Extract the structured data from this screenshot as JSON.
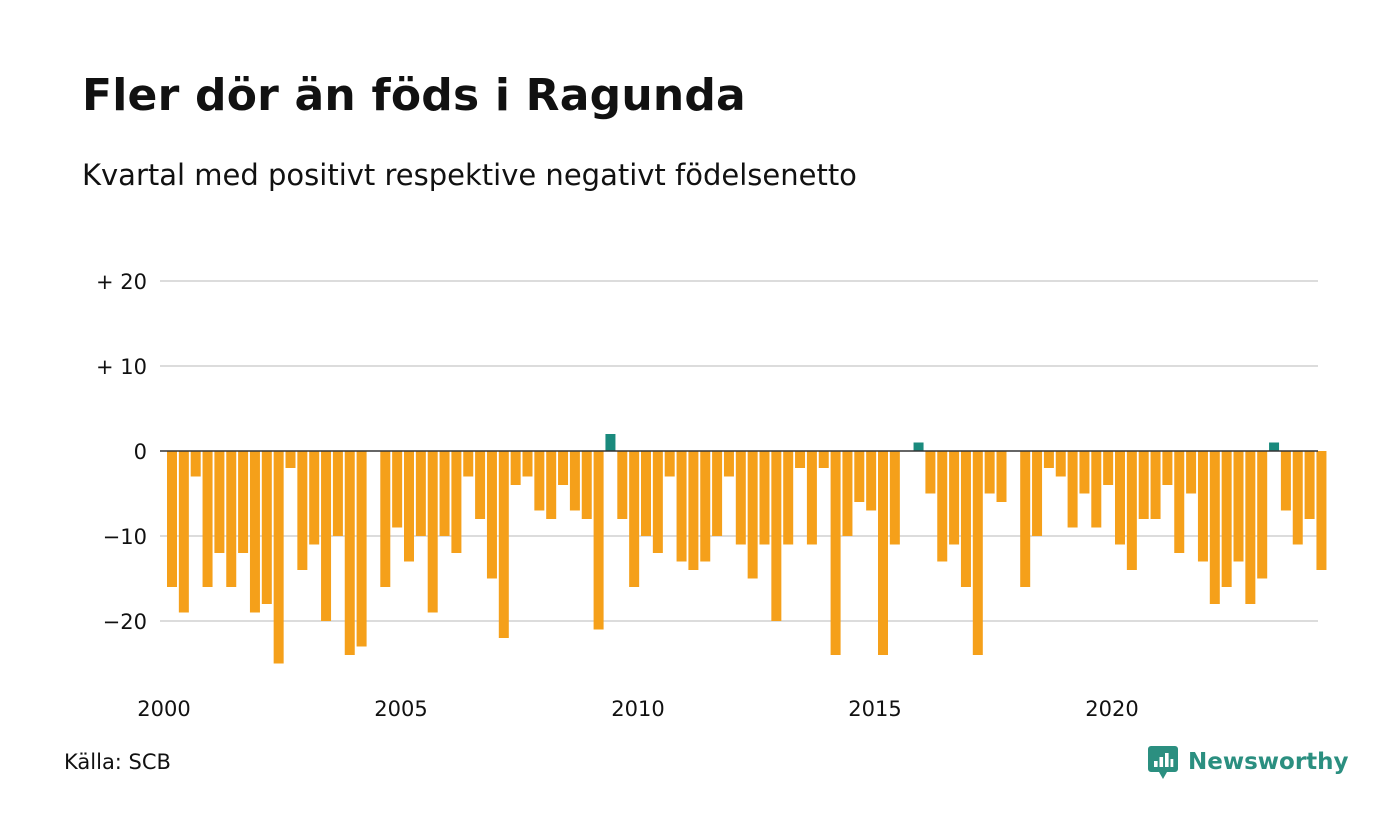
{
  "chart_data": {
    "type": "bar",
    "title": "Fler dör än föds i Ragunda",
    "subtitle": "Kvartal med positivt respektive negativt födelsenetto",
    "xlabel": "",
    "ylabel": "",
    "x_tick_labels": [
      "2000",
      "2005",
      "2010",
      "2015",
      "2020"
    ],
    "y_ticks": [
      {
        "value": 20,
        "label": "+ 20"
      },
      {
        "value": 10,
        "label": "+ 10"
      },
      {
        "value": 0,
        "label": "0"
      },
      {
        "value": -10,
        "label": "−10"
      },
      {
        "value": -20,
        "label": "−20"
      }
    ],
    "ylim": [
      -25,
      20
    ],
    "x_range": [
      "2000 Q1",
      "2024 Q2"
    ],
    "grid": true,
    "legend": "none",
    "colors": {
      "positive": "#1a8a7d",
      "negative": "#f5a01a",
      "gridline": "#dcdcdc",
      "zero_line": "#333333"
    },
    "categories": [
      "2000 Q1",
      "2000 Q2",
      "2000 Q3",
      "2000 Q4",
      "2001 Q1",
      "2001 Q2",
      "2001 Q3",
      "2001 Q4",
      "2002 Q1",
      "2002 Q2",
      "2002 Q3",
      "2002 Q4",
      "2003 Q1",
      "2003 Q2",
      "2003 Q3",
      "2003 Q4",
      "2004 Q1",
      "2004 Q2",
      "2004 Q3",
      "2004 Q4",
      "2005 Q1",
      "2005 Q2",
      "2005 Q3",
      "2005 Q4",
      "2006 Q1",
      "2006 Q2",
      "2006 Q3",
      "2006 Q4",
      "2007 Q1",
      "2007 Q2",
      "2007 Q3",
      "2007 Q4",
      "2008 Q1",
      "2008 Q2",
      "2008 Q3",
      "2008 Q4",
      "2009 Q1",
      "2009 Q2",
      "2009 Q3",
      "2009 Q4",
      "2010 Q1",
      "2010 Q2",
      "2010 Q3",
      "2010 Q4",
      "2011 Q1",
      "2011 Q2",
      "2011 Q3",
      "2011 Q4",
      "2012 Q1",
      "2012 Q2",
      "2012 Q3",
      "2012 Q4",
      "2013 Q1",
      "2013 Q2",
      "2013 Q3",
      "2013 Q4",
      "2014 Q1",
      "2014 Q2",
      "2014 Q3",
      "2014 Q4",
      "2015 Q1",
      "2015 Q2",
      "2015 Q3",
      "2015 Q4",
      "2016 Q1",
      "2016 Q2",
      "2016 Q3",
      "2016 Q4",
      "2017 Q1",
      "2017 Q2",
      "2017 Q3",
      "2017 Q4",
      "2018 Q1",
      "2018 Q2",
      "2018 Q3",
      "2018 Q4",
      "2019 Q1",
      "2019 Q2",
      "2019 Q3",
      "2019 Q4",
      "2020 Q1",
      "2020 Q2",
      "2020 Q3",
      "2020 Q4",
      "2021 Q1",
      "2021 Q2",
      "2021 Q3",
      "2021 Q4",
      "2022 Q1",
      "2022 Q2",
      "2022 Q3",
      "2022 Q4",
      "2023 Q1",
      "2023 Q2",
      "2023 Q3",
      "2023 Q4",
      "2024 Q1",
      "2024 Q2"
    ],
    "values": [
      -16,
      -19,
      -3,
      -16,
      -12,
      -16,
      -12,
      -19,
      -18,
      -25,
      -2,
      -14,
      -11,
      -20,
      -10,
      -24,
      -23,
      0,
      -16,
      -9,
      -13,
      -10,
      -19,
      -10,
      -12,
      -3,
      -8,
      -15,
      -22,
      -4,
      -3,
      -7,
      -8,
      -4,
      -7,
      -8,
      -21,
      2,
      -8,
      -16,
      -10,
      -12,
      -3,
      -13,
      -14,
      -13,
      -10,
      -3,
      -11,
      -15,
      -11,
      -20,
      -11,
      -2,
      -11,
      -2,
      -24,
      -10,
      -6,
      -7,
      -24,
      -11,
      0,
      1,
      -5,
      -13,
      -11,
      -16,
      -24,
      -5,
      -6,
      0,
      -16,
      -10,
      -2,
      -3,
      -9,
      -5,
      -9,
      -4,
      -11,
      -14,
      -8,
      -8,
      -4,
      -12,
      -5,
      -13,
      -18,
      -16,
      -13,
      -18,
      -15,
      1,
      -7,
      -11,
      -8,
      -14
    ]
  },
  "footer": {
    "source": "Källa: SCB",
    "brand": "Newsworthy",
    "brand_icon": "newsworthy-logo-icon"
  }
}
